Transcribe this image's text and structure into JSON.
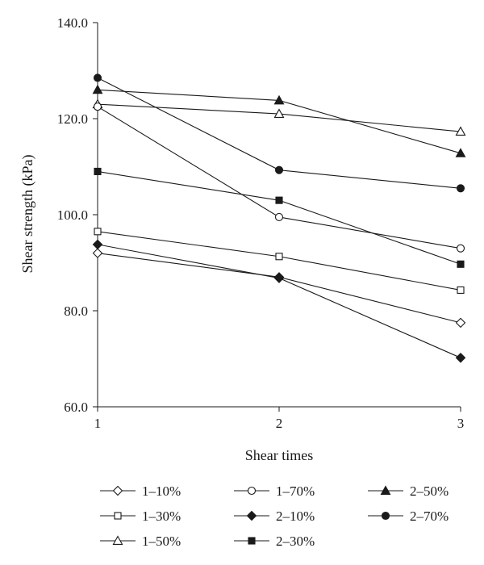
{
  "chart_data": {
    "type": "line",
    "xlabel": "Shear times",
    "ylabel": "Shear strength (kPa)",
    "x": [
      1,
      2,
      3
    ],
    "x_tick_labels": [
      "1",
      "2",
      "3"
    ],
    "xlim": [
      1,
      3
    ],
    "ylim": [
      60,
      140
    ],
    "y_tick_labels": [
      "60.0",
      "80.0",
      "100.0",
      "120.0",
      "140.0"
    ],
    "grid": false,
    "legend_position": "bottom",
    "series": [
      {
        "name": "1–10%",
        "marker": "diamond-open",
        "values": [
          92.0,
          87.0,
          77.5
        ]
      },
      {
        "name": "1–30%",
        "marker": "square-open",
        "values": [
          96.5,
          91.3,
          84.3
        ]
      },
      {
        "name": "1–50%",
        "marker": "triangle-open",
        "values": [
          123.0,
          121.0,
          117.3
        ]
      },
      {
        "name": "1–70%",
        "marker": "circle-open",
        "values": [
          122.5,
          99.5,
          93.0
        ]
      },
      {
        "name": "2–10%",
        "marker": "diamond-filled",
        "values": [
          93.8,
          86.8,
          70.2
        ]
      },
      {
        "name": "2–30%",
        "marker": "square-filled",
        "values": [
          109.0,
          103.0,
          89.7
        ]
      },
      {
        "name": "2–50%",
        "marker": "triangle-filled",
        "values": [
          126.0,
          123.8,
          112.8
        ]
      },
      {
        "name": "2–70%",
        "marker": "circle-filled",
        "values": [
          128.5,
          109.3,
          105.5
        ]
      }
    ]
  }
}
